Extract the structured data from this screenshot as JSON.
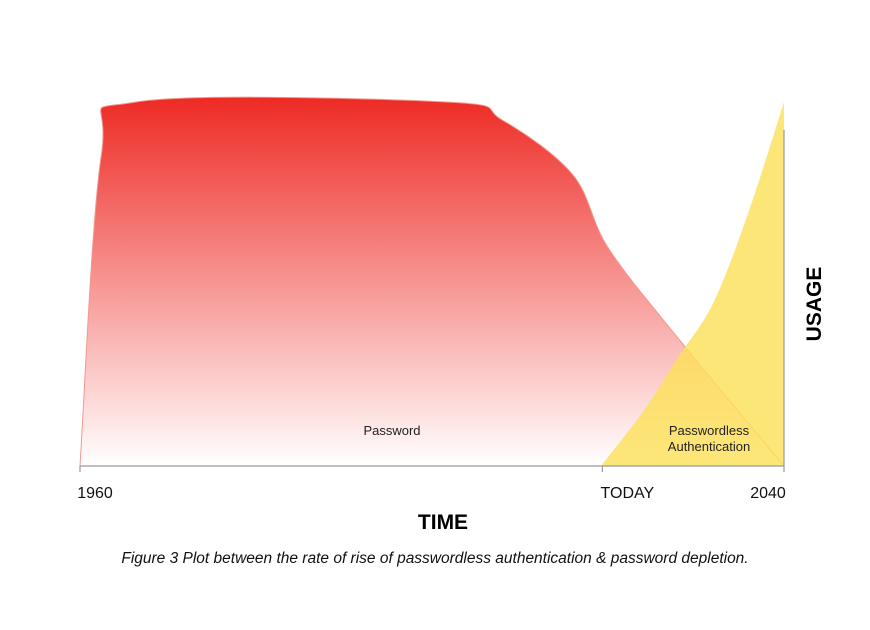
{
  "chart_data": {
    "type": "area",
    "x_ticks": [
      "1960",
      "TODAY",
      "2040"
    ],
    "xlabel": "TIME",
    "ylabel": "USAGE",
    "series": [
      {
        "label": "Password",
        "color_top": "#ee2a24",
        "color_bottom": "#ffffff",
        "points": [
          [
            0,
            0
          ],
          [
            0.03,
            0.85
          ],
          [
            0.08,
            1.0
          ],
          [
            0.52,
            1.0
          ],
          [
            0.6,
            0.95
          ],
          [
            0.7,
            0.8
          ],
          [
            0.75,
            0.6
          ],
          [
            0.85,
            0.35
          ],
          [
            1.0,
            0
          ]
        ]
      },
      {
        "label": "Passwordless Authentication",
        "color": "#fde05a",
        "points": [
          [
            0.74,
            0
          ],
          [
            0.8,
            0.15
          ],
          [
            0.85,
            0.3
          ],
          [
            0.9,
            0.45
          ],
          [
            0.95,
            0.7
          ],
          [
            1.0,
            1.0
          ]
        ]
      }
    ]
  },
  "caption": "Figure 3 Plot between the rate of rise of passwordless authentication & password depletion."
}
